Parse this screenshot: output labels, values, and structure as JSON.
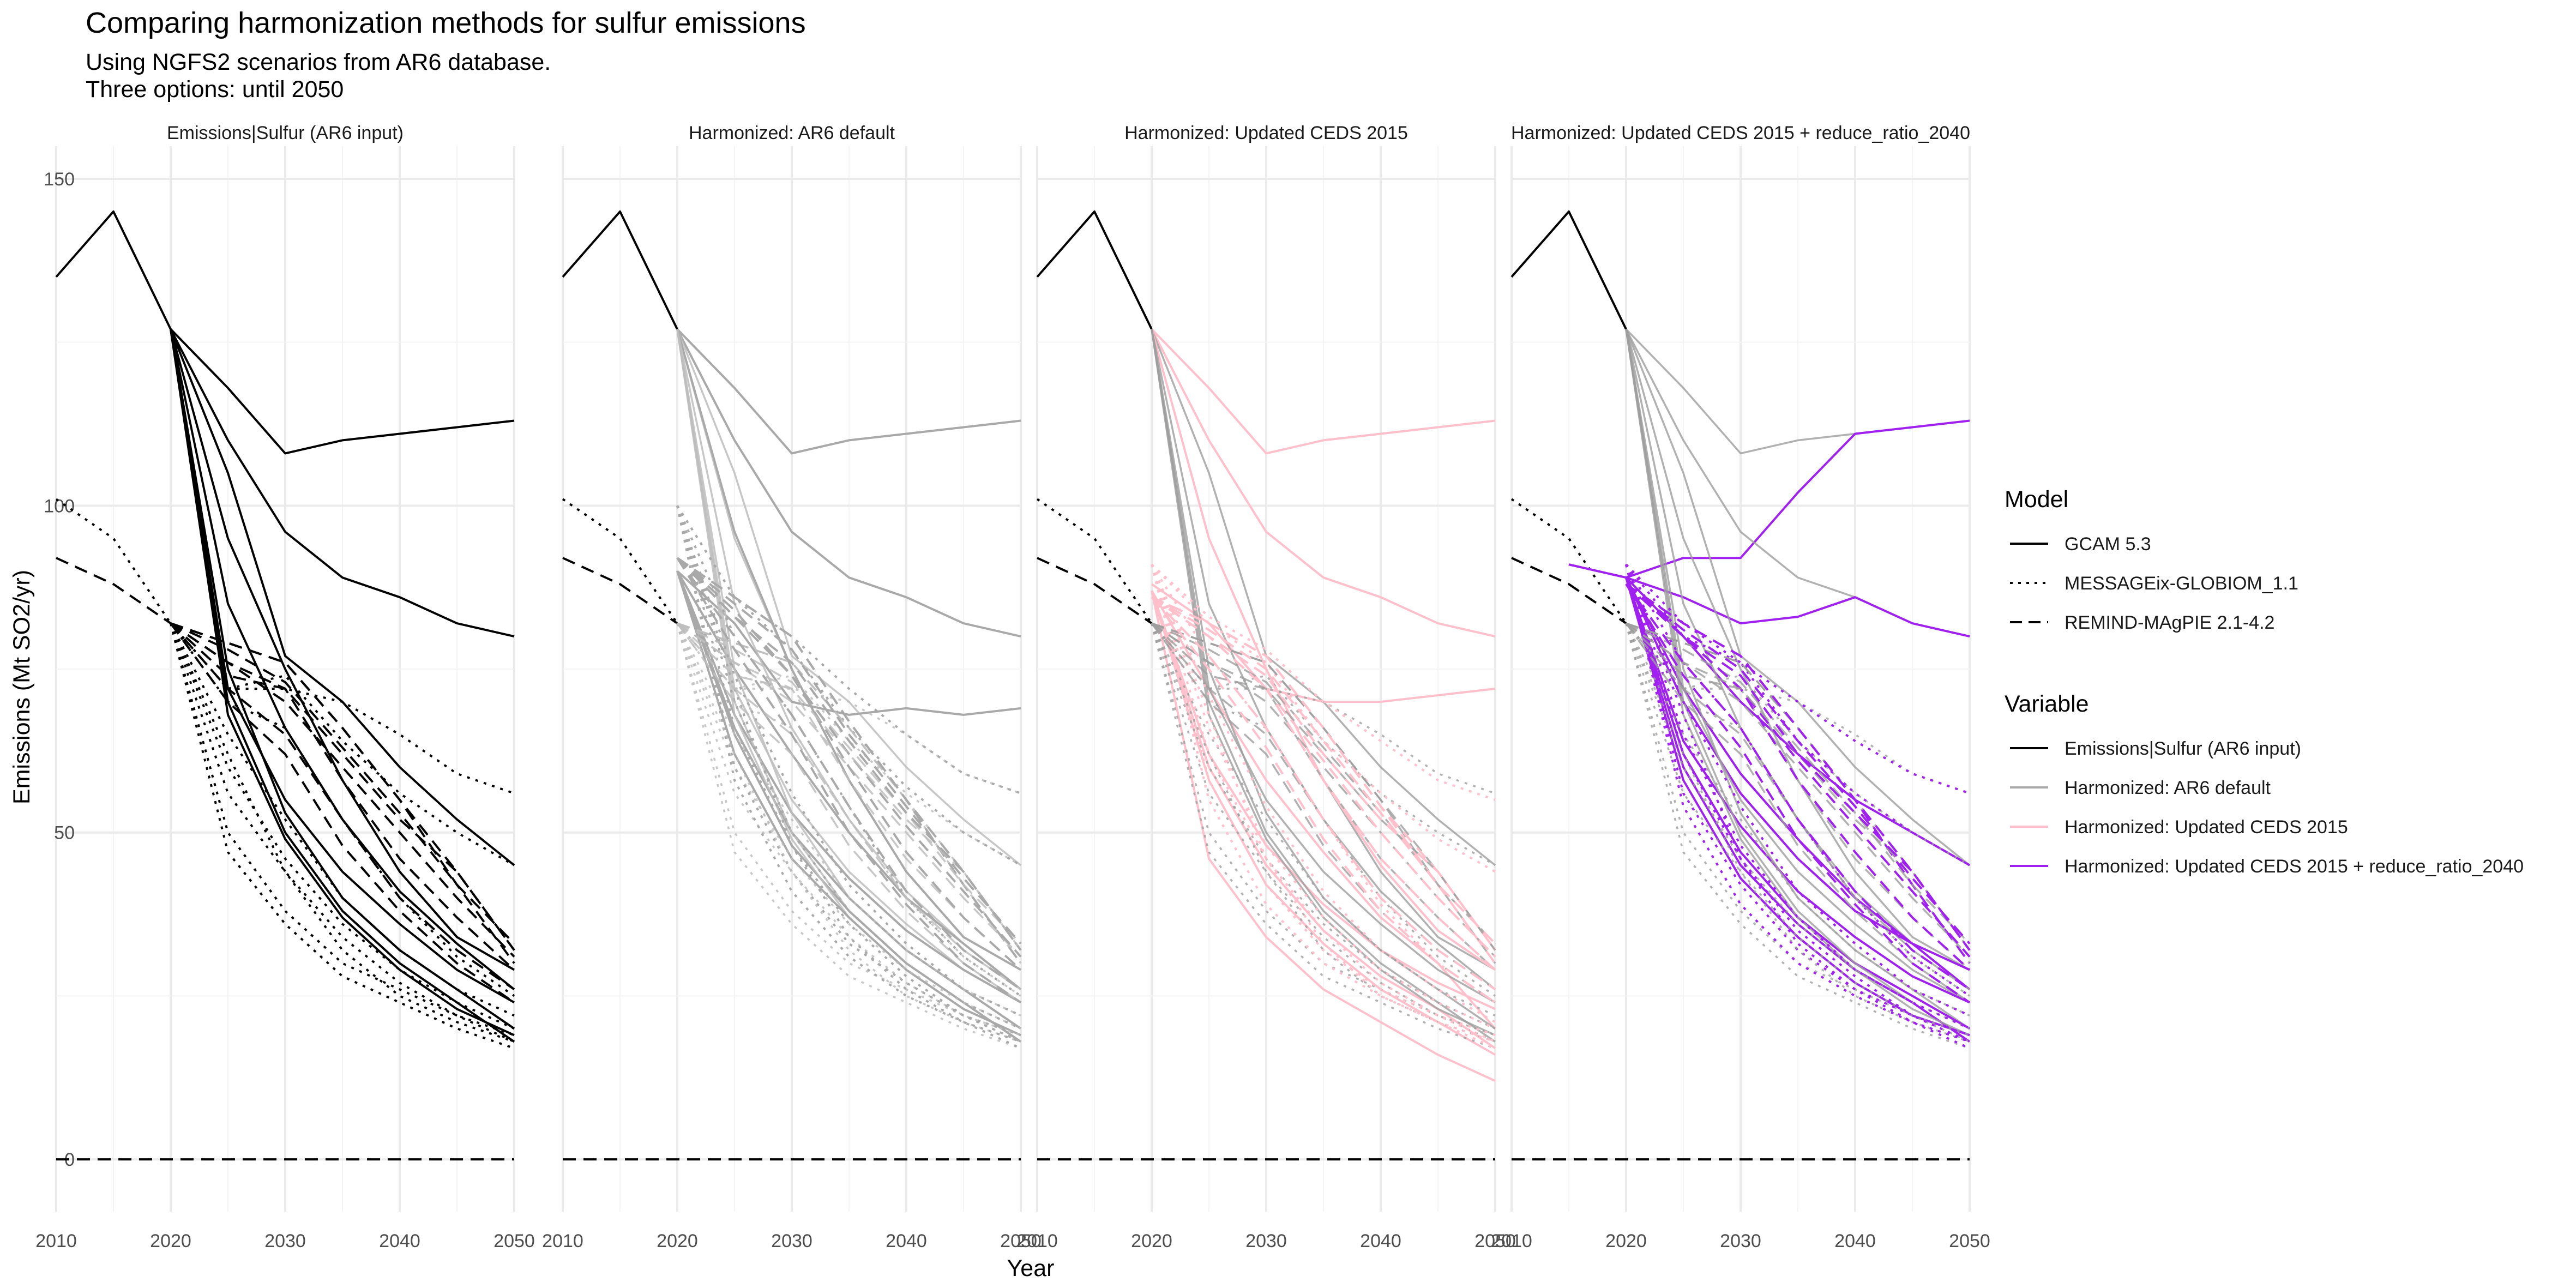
{
  "title": "Comparing harmonization methods for sulfur emissions",
  "subtitle_lines": [
    "Using NGFS2 scenarios from AR6 database.",
    "Three options: until 2050"
  ],
  "chart_data": {
    "type": "line",
    "xlabel": "Year",
    "ylabel": "Emissions (Mt SO2/yr)",
    "xlim": [
      2010,
      2050
    ],
    "ylim": [
      -8,
      155
    ],
    "x_ticks": [
      2010,
      2020,
      2030,
      2040,
      2050
    ],
    "y_ticks": [
      0,
      50,
      100,
      150
    ],
    "grid": true,
    "facets": [
      "Emissions|Sulfur (AR6 input)",
      "Harmonized: AR6 default",
      "Harmonized: Updated CEDS 2015",
      "Harmonized: Updated CEDS 2015 + reduce_ratio_2040"
    ],
    "legend": {
      "placement": "right",
      "model": {
        "title": "Model",
        "entries": [
          {
            "label": "GCAM 5.3",
            "dash": "solid"
          },
          {
            "label": "MESSAGEix-GLOBIOM_1.1",
            "dash": "dotted"
          },
          {
            "label": "REMIND-MAgPIE 2.1-4.2",
            "dash": "dashed"
          }
        ]
      },
      "variable": {
        "title": "Variable",
        "entries": [
          {
            "label": "Emissions|Sulfur (AR6 input)",
            "color": "#000000"
          },
          {
            "label": "Harmonized: AR6 default",
            "color": "#a9a9a9"
          },
          {
            "label": "Harmonized: Updated CEDS 2015",
            "color": "#ffc0cb"
          },
          {
            "label": "Harmonized: Updated CEDS 2015 + reduce_ratio_2040",
            "color": "#a020f0"
          }
        ]
      }
    },
    "years": [
      2010,
      2015,
      2020,
      2025,
      2030,
      2035,
      2040,
      2045,
      2050
    ],
    "history": [
      {
        "model": "GCAM 5.3",
        "values": [
          135,
          145,
          127
        ]
      },
      {
        "model": "MESSAGEix-GLOBIOM_1.1",
        "values": [
          101,
          95,
          82
        ]
      },
      {
        "model": "REMIND-MAgPIE 2.1-4.2",
        "values": [
          92,
          88,
          82
        ]
      }
    ],
    "zero_line": {
      "model": "REMIND-MAgPIE 2.1-4.2",
      "value": 0
    },
    "scenarios": [
      {
        "model": "GCAM 5.3",
        "input": [
          127,
          118,
          108,
          110,
          111,
          112,
          113
        ],
        "ar6": [
          127,
          118,
          108,
          110,
          111,
          112,
          113
        ],
        "ceds": [
          127,
          118,
          108,
          110,
          111,
          112,
          113
        ],
        "rr": [
          89,
          92,
          92,
          102,
          111,
          112,
          113
        ]
      },
      {
        "model": "GCAM 5.3",
        "input": [
          127,
          110,
          96,
          89,
          86,
          82,
          80
        ],
        "ar6": [
          127,
          110,
          96,
          89,
          86,
          82,
          80
        ],
        "ceds": [
          127,
          110,
          96,
          89,
          86,
          82,
          80
        ],
        "rr": [
          89,
          86,
          82,
          83,
          86,
          82,
          80
        ]
      },
      {
        "model": "GCAM 5.3",
        "input": [
          127,
          105,
          77,
          70,
          60,
          52,
          45
        ],
        "ar6": [
          90,
          82,
          70,
          68,
          69,
          68,
          69
        ],
        "ceds": [
          88,
          82,
          72,
          70,
          70,
          71,
          72
        ],
        "rr": [
          89,
          80,
          70,
          62,
          55,
          50,
          45
        ]
      },
      {
        "model": "GCAM 5.3",
        "input": [
          127,
          95,
          75,
          58,
          44,
          34,
          29
        ],
        "ar6": [
          127,
          96,
          75,
          58,
          44,
          34,
          29
        ],
        "ceds": [
          127,
          95,
          75,
          58,
          45,
          35,
          29
        ],
        "rr": [
          89,
          70,
          56,
          46,
          38,
          33,
          29
        ]
      },
      {
        "model": "GCAM 5.3",
        "input": [
          127,
          85,
          66,
          52,
          41,
          33,
          26
        ],
        "ar6": [
          90,
          75,
          62,
          50,
          40,
          33,
          26
        ],
        "ceds": [
          87,
          72,
          58,
          47,
          37,
          30,
          20
        ],
        "rr": [
          89,
          72,
          59,
          49,
          40,
          33,
          26
        ]
      },
      {
        "model": "GCAM 5.3",
        "input": [
          127,
          72,
          55,
          44,
          36,
          29,
          24
        ],
        "ar6": [
          90,
          68,
          53,
          43,
          35,
          29,
          24
        ],
        "ceds": [
          87,
          62,
          48,
          39,
          32,
          27,
          23
        ],
        "rr": [
          89,
          64,
          51,
          41,
          34,
          28,
          24
        ]
      },
      {
        "model": "GCAM 5.3",
        "input": [
          127,
          75,
          53,
          40,
          32,
          26,
          20
        ],
        "ar6": [
          90,
          66,
          50,
          40,
          32,
          26,
          20
        ],
        "ceds": [
          87,
          60,
          45,
          35,
          28,
          23,
          17
        ],
        "rr": [
          89,
          62,
          47,
          37,
          30,
          25,
          20
        ]
      },
      {
        "model": "GCAM 5.3",
        "input": [
          127,
          70,
          50,
          38,
          30,
          24,
          18
        ],
        "ar6": [
          90,
          65,
          48,
          38,
          30,
          24,
          18
        ],
        "ceds": [
          87,
          58,
          42,
          33,
          26,
          21,
          16
        ],
        "rr": [
          89,
          60,
          45,
          36,
          29,
          24,
          18
        ]
      },
      {
        "model": "GCAM 5.3",
        "input": [
          127,
          68,
          49,
          37,
          29,
          23,
          19
        ],
        "ar6": [
          90,
          62,
          46,
          37,
          29,
          23,
          19
        ],
        "ceds": [
          87,
          46,
          34,
          26,
          21,
          16,
          12
        ],
        "rr": [
          89,
          58,
          43,
          34,
          27,
          22,
          19
        ]
      },
      {
        "model": "MESSAGEix-GLOBIOM_1.1",
        "input": [
          82,
          72,
          72,
          70,
          65,
          59,
          56
        ],
        "ar6": [
          100,
          86,
          80,
          72,
          65,
          59,
          56
        ],
        "ceds": [
          91,
          83,
          78,
          70,
          64,
          58,
          55
        ],
        "rr": [
          91,
          82,
          76,
          70,
          64,
          59,
          56
        ]
      },
      {
        "model": "MESSAGEix-GLOBIOM_1.1",
        "input": [
          82,
          72,
          74,
          64,
          56,
          50,
          45
        ],
        "ar6": [
          100,
          86,
          78,
          66,
          57,
          50,
          45
        ],
        "ceds": [
          91,
          82,
          76,
          64,
          56,
          49,
          44
        ],
        "rr": [
          91,
          80,
          76,
          64,
          56,
          50,
          45
        ]
      },
      {
        "model": "MESSAGEix-GLOBIOM_1.1",
        "input": [
          82,
          70,
          66,
          52,
          40,
          31,
          25
        ],
        "ar6": [
          100,
          80,
          68,
          54,
          40,
          31,
          25
        ],
        "ceds": [
          91,
          77,
          66,
          52,
          39,
          30,
          24
        ],
        "rr": [
          91,
          76,
          66,
          52,
          40,
          31,
          25
        ]
      },
      {
        "model": "MESSAGEix-GLOBIOM_1.1",
        "input": [
          82,
          65,
          52,
          40,
          32,
          26,
          22
        ],
        "ar6": [
          100,
          74,
          56,
          42,
          33,
          26,
          22
        ],
        "ceds": [
          91,
          71,
          54,
          41,
          32,
          26,
          21
        ],
        "rr": [
          91,
          70,
          54,
          41,
          33,
          26,
          22
        ]
      },
      {
        "model": "MESSAGEix-GLOBIOM_1.1",
        "input": [
          82,
          60,
          46,
          36,
          29,
          24,
          20
        ],
        "ar6": [
          100,
          70,
          50,
          38,
          30,
          24,
          20
        ],
        "ceds": [
          91,
          66,
          48,
          37,
          29,
          24,
          20
        ],
        "rr": [
          91,
          65,
          48,
          37,
          29,
          24,
          20
        ]
      },
      {
        "model": "MESSAGEix-GLOBIOM_1.1",
        "input": [
          82,
          56,
          44,
          34,
          27,
          22,
          19
        ],
        "ar6": [
          100,
          66,
          48,
          36,
          28,
          22,
          19
        ],
        "ceds": [
          91,
          62,
          46,
          35,
          27,
          22,
          19
        ],
        "rr": [
          91,
          62,
          46,
          35,
          28,
          22,
          19
        ]
      },
      {
        "model": "MESSAGEix-GLOBIOM_1.1",
        "input": [
          82,
          50,
          38,
          30,
          26,
          22,
          18
        ],
        "ar6": [
          100,
          60,
          44,
          33,
          27,
          22,
          18
        ],
        "ceds": [
          91,
          58,
          42,
          32,
          26,
          22,
          18
        ],
        "rr": [
          91,
          56,
          42,
          32,
          26,
          22,
          18
        ]
      },
      {
        "model": "MESSAGEix-GLOBIOM_1.1",
        "input": [
          82,
          47,
          36,
          28,
          24,
          20,
          17
        ],
        "ar6": [
          100,
          58,
          41,
          31,
          25,
          21,
          17
        ],
        "ceds": [
          91,
          55,
          39,
          30,
          25,
          21,
          17
        ],
        "rr": [
          91,
          54,
          39,
          30,
          25,
          21,
          17
        ]
      },
      {
        "model": "MESSAGEix-GLOBIOM_1.1",
        "input": [
          82,
          62,
          44,
          32,
          25,
          21,
          18
        ],
        "ar6": [
          100,
          72,
          48,
          34,
          26,
          21,
          18
        ],
        "ceds": [
          91,
          68,
          46,
          33,
          25,
          21,
          18
        ],
        "rr": [
          91,
          68,
          46,
          33,
          26,
          21,
          18
        ]
      },
      {
        "model": "REMIND-MAgPIE 2.1-4.2",
        "input": [
          82,
          79,
          76,
          66,
          55,
          42,
          30
        ],
        "ar6": [
          92,
          86,
          80,
          67,
          55,
          42,
          30
        ],
        "ceds": [
          86,
          82,
          77,
          66,
          54,
          42,
          30
        ],
        "rr": [
          88,
          82,
          77,
          66,
          55,
          42,
          30
        ]
      },
      {
        "model": "REMIND-MAgPIE 2.1-4.2",
        "input": [
          82,
          79,
          76,
          66,
          55,
          44,
          32
        ],
        "ar6": [
          92,
          86,
          80,
          67,
          55,
          44,
          32
        ],
        "ceds": [
          86,
          82,
          77,
          66,
          54,
          44,
          32
        ],
        "rr": [
          88,
          82,
          77,
          66,
          55,
          44,
          32
        ]
      },
      {
        "model": "REMIND-MAgPIE 2.1-4.2",
        "input": [
          82,
          78,
          73,
          63,
          53,
          42,
          33
        ],
        "ar6": [
          92,
          85,
          78,
          65,
          54,
          43,
          33
        ],
        "ceds": [
          86,
          81,
          75,
          64,
          53,
          42,
          33
        ],
        "rr": [
          88,
          81,
          75,
          64,
          54,
          43,
          33
        ]
      },
      {
        "model": "REMIND-MAgPIE 2.1-4.2",
        "input": [
          82,
          76,
          70,
          60,
          50,
          40,
          31
        ],
        "ar6": [
          92,
          83,
          74,
          62,
          51,
          41,
          31
        ],
        "ceds": [
          86,
          80,
          72,
          61,
          50,
          40,
          31
        ],
        "rr": [
          88,
          80,
          72,
          61,
          51,
          41,
          31
        ]
      },
      {
        "model": "REMIND-MAgPIE 2.1-4.2",
        "input": [
          82,
          76,
          72,
          58,
          46,
          37,
          29
        ],
        "ar6": [
          92,
          84,
          74,
          60,
          47,
          37,
          29
        ],
        "ceds": [
          86,
          80,
          72,
          58,
          46,
          37,
          29
        ],
        "rr": [
          88,
          80,
          72,
          58,
          47,
          37,
          29
        ]
      },
      {
        "model": "REMIND-MAgPIE 2.1-4.2",
        "input": [
          82,
          72,
          65,
          52,
          40,
          32,
          26
        ],
        "ar6": [
          92,
          80,
          68,
          54,
          41,
          32,
          26
        ],
        "ceds": [
          86,
          77,
          66,
          52,
          40,
          32,
          26
        ],
        "rr": [
          88,
          76,
          66,
          52,
          41,
          32,
          26
        ]
      },
      {
        "model": "REMIND-MAgPIE 2.1-4.2",
        "input": [
          82,
          70,
          62,
          48,
          38,
          30,
          24
        ],
        "ar6": [
          92,
          78,
          65,
          50,
          39,
          30,
          24
        ],
        "ceds": [
          86,
          75,
          63,
          49,
          38,
          30,
          24
        ],
        "rr": [
          88,
          74,
          63,
          49,
          39,
          30,
          24
        ]
      },
      {
        "model": "REMIND-MAgPIE 2.1-4.2",
        "input": [
          82,
          74,
          72,
          62,
          52,
          44,
          32
        ],
        "ar6": [
          92,
          83,
          76,
          64,
          53,
          44,
          32
        ],
        "ceds": [
          86,
          80,
          74,
          62,
          52,
          44,
          32
        ],
        "rr": [
          88,
          80,
          74,
          62,
          53,
          44,
          32
        ]
      }
    ]
  }
}
